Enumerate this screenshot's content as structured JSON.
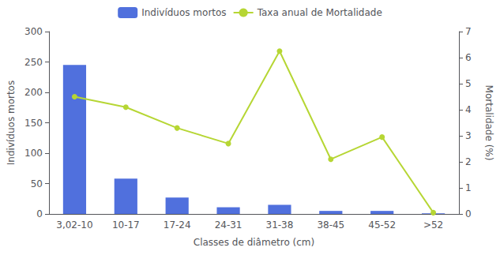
{
  "chart_data": {
    "type": "bar",
    "categories": [
      "3,02-10",
      "10-17",
      "17-24",
      "24-31",
      "31-38",
      "38-45",
      "45-52",
      ">52"
    ],
    "xlabel": "Classes de diâmetro (cm)",
    "ylabel": "Indivíduos mortos",
    "y2label": "Mortalidade (%)",
    "ylim": [
      0,
      300
    ],
    "yticks": [
      0,
      50,
      100,
      150,
      200,
      250,
      300
    ],
    "y2lim": [
      0,
      7
    ],
    "y2ticks": [
      0,
      1,
      2,
      3,
      4,
      5,
      6,
      7
    ],
    "grid": false,
    "legend": "upper center",
    "series": [
      {
        "name": "Indivíduos mortos",
        "type": "bar",
        "values": [
          245,
          58,
          27,
          11,
          15,
          5,
          5,
          1
        ]
      },
      {
        "name": "Taxa anual de Mortalidade",
        "type": "line",
        "axis": "y2",
        "marker": "circle",
        "values": [
          4.5,
          4.1,
          3.3,
          2.7,
          6.25,
          2.1,
          2.95,
          0.05
        ]
      }
    ]
  }
}
